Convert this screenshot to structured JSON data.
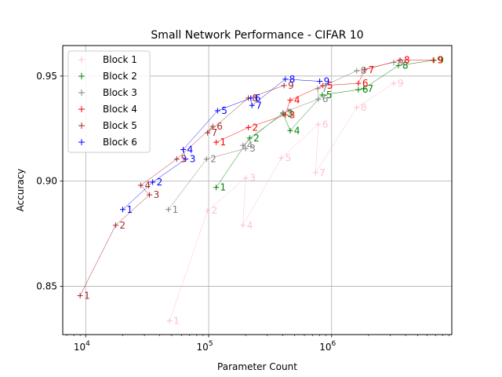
{
  "chart_data": {
    "type": "scatter",
    "title": "Small Network Performance - CIFAR 10",
    "xlabel": "Parameter Count",
    "ylabel": "Accuracy",
    "xscale": "log",
    "xlim": [
      6500,
      9500000
    ],
    "ylim": [
      0.827,
      0.9645
    ],
    "x_ticks": [
      {
        "value": 10000,
        "base": "10",
        "exp": "4"
      },
      {
        "value": 100000,
        "base": "10",
        "exp": "5"
      },
      {
        "value": 1000000,
        "base": "10",
        "exp": "6"
      }
    ],
    "y_ticks": [
      {
        "value": 0.85,
        "label": "0.85"
      },
      {
        "value": 0.9,
        "label": "0.90"
      },
      {
        "value": 0.95,
        "label": "0.95"
      }
    ],
    "grid": true,
    "legend_position": "top-left",
    "series": [
      {
        "name": "Block 1",
        "color": "#ffc0cb",
        "points": [
          {
            "label": "1",
            "x": 48000,
            "y": 0.8335
          },
          {
            "label": "2",
            "x": 98000,
            "y": 0.886
          },
          {
            "label": "3",
            "x": 200000,
            "y": 0.9015
          },
          {
            "label": "4",
            "x": 190000,
            "y": 0.879
          },
          {
            "label": "5",
            "x": 390000,
            "y": 0.911
          },
          {
            "label": "6",
            "x": 780000,
            "y": 0.927
          },
          {
            "label": "7",
            "x": 740000,
            "y": 0.904
          },
          {
            "label": "8",
            "x": 1600000,
            "y": 0.935
          },
          {
            "label": "9",
            "x": 3200000,
            "y": 0.9465
          }
        ]
      },
      {
        "name": "Block 2",
        "color": "#008000",
        "points": [
          {
            "label": "1",
            "x": 115000,
            "y": 0.897
          },
          {
            "label": "2",
            "x": 215000,
            "y": 0.9205
          },
          {
            "label": "3",
            "x": 405000,
            "y": 0.932
          },
          {
            "label": "4",
            "x": 460000,
            "y": 0.924
          },
          {
            "label": "5",
            "x": 840000,
            "y": 0.941
          },
          {
            "label": "6",
            "x": 1650000,
            "y": 0.9435
          },
          {
            "label": "7",
            "x": 1820000,
            "y": 0.944
          },
          {
            "label": "8",
            "x": 3500000,
            "y": 0.955
          },
          {
            "label": "9",
            "x": 6800000,
            "y": 0.9575
          }
        ]
      },
      {
        "name": "Block 3",
        "color": "#808080",
        "points": [
          {
            "label": "1",
            "x": 47000,
            "y": 0.8865
          },
          {
            "label": "2",
            "x": 96000,
            "y": 0.9105
          },
          {
            "label": "3",
            "x": 200000,
            "y": 0.9155
          },
          {
            "label": "4",
            "x": 190000,
            "y": 0.917
          },
          {
            "label": "5",
            "x": 400000,
            "y": 0.9325
          },
          {
            "label": "6",
            "x": 780000,
            "y": 0.939
          },
          {
            "label": "7",
            "x": 770000,
            "y": 0.944
          },
          {
            "label": "8",
            "x": 1600000,
            "y": 0.9525
          },
          {
            "label": "9",
            "x": 3200000,
            "y": 0.9565
          }
        ]
      },
      {
        "name": "Block 4",
        "color": "#ff0000",
        "points": [
          {
            "label": "1",
            "x": 115000,
            "y": 0.9185
          },
          {
            "label": "2",
            "x": 210000,
            "y": 0.9255
          },
          {
            "label": "3",
            "x": 420000,
            "y": 0.9315
          },
          {
            "label": "4",
            "x": 460000,
            "y": 0.9385
          },
          {
            "label": "5",
            "x": 850000,
            "y": 0.9455
          },
          {
            "label": "6",
            "x": 1650000,
            "y": 0.9465
          },
          {
            "label": "7",
            "x": 1850000,
            "y": 0.953
          },
          {
            "label": "8",
            "x": 3600000,
            "y": 0.9575
          },
          {
            "label": "9",
            "x": 6700000,
            "y": 0.9575
          }
        ]
      },
      {
        "name": "Block 5",
        "color": "#a52a2a",
        "points": [
          {
            "label": "1",
            "x": 9000,
            "y": 0.8455
          },
          {
            "label": "2",
            "x": 17500,
            "y": 0.879
          },
          {
            "label": "3",
            "x": 33000,
            "y": 0.8935
          },
          {
            "label": "4",
            "x": 28000,
            "y": 0.898
          },
          {
            "label": "5",
            "x": 55000,
            "y": 0.9105
          },
          {
            "label": "6",
            "x": 108000,
            "y": 0.926
          },
          {
            "label": "7",
            "x": 98000,
            "y": 0.923
          },
          {
            "label": "8",
            "x": 210000,
            "y": 0.9395
          },
          {
            "label": "9",
            "x": 410000,
            "y": 0.9455
          }
        ]
      },
      {
        "name": "Block 6",
        "color": "#0000ff",
        "points": [
          {
            "label": "1",
            "x": 20000,
            "y": 0.8865
          },
          {
            "label": "2",
            "x": 35000,
            "y": 0.8995
          },
          {
            "label": "3",
            "x": 65000,
            "y": 0.9105
          },
          {
            "label": "4",
            "x": 62000,
            "y": 0.915
          },
          {
            "label": "5",
            "x": 118000,
            "y": 0.9335
          },
          {
            "label": "6",
            "x": 220000,
            "y": 0.9395
          },
          {
            "label": "7",
            "x": 225000,
            "y": 0.936
          },
          {
            "label": "8",
            "x": 420000,
            "y": 0.9485
          },
          {
            "label": "9",
            "x": 800000,
            "y": 0.9475
          }
        ]
      }
    ]
  }
}
